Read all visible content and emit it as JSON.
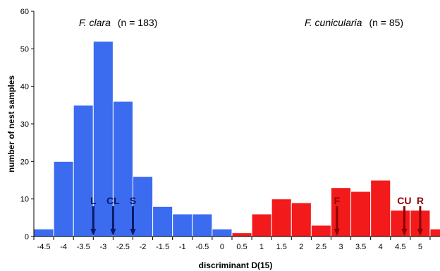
{
  "chart_data": {
    "type": "bar",
    "xlabel": "discriminant D(15)",
    "ylabel": "number of nest samples",
    "ylim": [
      0,
      60
    ],
    "yticks": [
      "0",
      "10",
      "20",
      "30",
      "40",
      "50",
      "60"
    ],
    "xticks": [
      "-4.5",
      "-4",
      "-3.5",
      "-3",
      "-2.5",
      "-2",
      "-1.5",
      "-1",
      "-0.5",
      "0",
      "0.5",
      "1",
      "1.5",
      "2",
      "2.5",
      "3",
      "3.5",
      "4",
      "4.5",
      "5"
    ],
    "grid": false,
    "legend": "none",
    "bin_width": 0.5,
    "series": [
      {
        "color": "#3b6cf0",
        "bin_starts": [
          -5.0,
          -4.5,
          -4.0,
          -3.5,
          -3.0,
          -2.5,
          -2.0,
          -1.5,
          -1.0,
          -0.5,
          0.0
        ],
        "values": [
          2,
          20,
          35,
          52,
          36,
          16,
          8,
          6,
          6,
          2,
          0
        ]
      },
      {
        "color": "#f21a1a",
        "bin_starts": [
          0.0,
          0.5,
          1.0,
          1.5,
          2.0,
          2.5,
          3.0,
          3.5,
          4.0,
          4.5,
          5.0
        ],
        "values": [
          1,
          6,
          10,
          9,
          3,
          13,
          12,
          15,
          7,
          7,
          2
        ]
      }
    ],
    "group_labels": [
      {
        "species": "F. clara",
        "count": "(n = 183)"
      },
      {
        "species": "F. cunicularia",
        "count": "(n = 85)"
      }
    ],
    "markers": [
      {
        "label": "L",
        "x": -3.5,
        "color": "#0a1a66"
      },
      {
        "label": "CL",
        "x": -3.0,
        "color": "#0a1a66"
      },
      {
        "label": "S",
        "x": -2.5,
        "color": "#0a1a66"
      },
      {
        "label": "F",
        "x": 2.65,
        "color": "#8b0000"
      },
      {
        "label": "CU",
        "x": 4.35,
        "color": "#8b0000"
      },
      {
        "label": "R",
        "x": 4.75,
        "color": "#8b0000"
      }
    ]
  }
}
